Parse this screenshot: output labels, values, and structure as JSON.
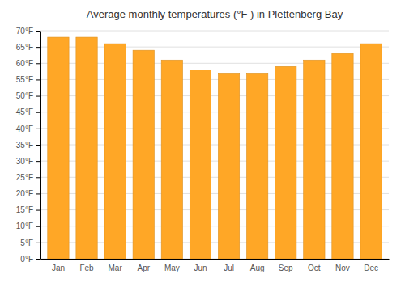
{
  "chart_data": {
    "type": "bar",
    "title": "Average monthly temperatures (°F ) in Plettenberg Bay",
    "categories": [
      "Jan",
      "Feb",
      "Mar",
      "Apr",
      "May",
      "Jun",
      "Jul",
      "Aug",
      "Sep",
      "Oct",
      "Nov",
      "Dec"
    ],
    "values": [
      68,
      68,
      66,
      64,
      61,
      58,
      57,
      57,
      59,
      61,
      63,
      66
    ],
    "color": "#FFA726",
    "ylim": [
      0,
      70
    ],
    "yticks": [
      {
        "value": 0,
        "label": "0°F"
      },
      {
        "value": 5,
        "label": "5°F"
      },
      {
        "value": 10,
        "label": "10°F"
      },
      {
        "value": 15,
        "label": "15°F"
      },
      {
        "value": 20,
        "label": "20°F"
      },
      {
        "value": 25,
        "label": "25°F"
      },
      {
        "value": 30,
        "label": "30°F"
      },
      {
        "value": 35,
        "label": "35°F"
      },
      {
        "value": 40,
        "label": "40°F"
      },
      {
        "value": 45,
        "label": "45°F"
      },
      {
        "value": 50,
        "label": "50°F"
      },
      {
        "value": 55,
        "label": "55°F"
      },
      {
        "value": 60,
        "label": "60°F"
      },
      {
        "value": 65,
        "label": "65°F"
      },
      {
        "value": 70,
        "label": "70°F"
      }
    ],
    "grid": true
  }
}
